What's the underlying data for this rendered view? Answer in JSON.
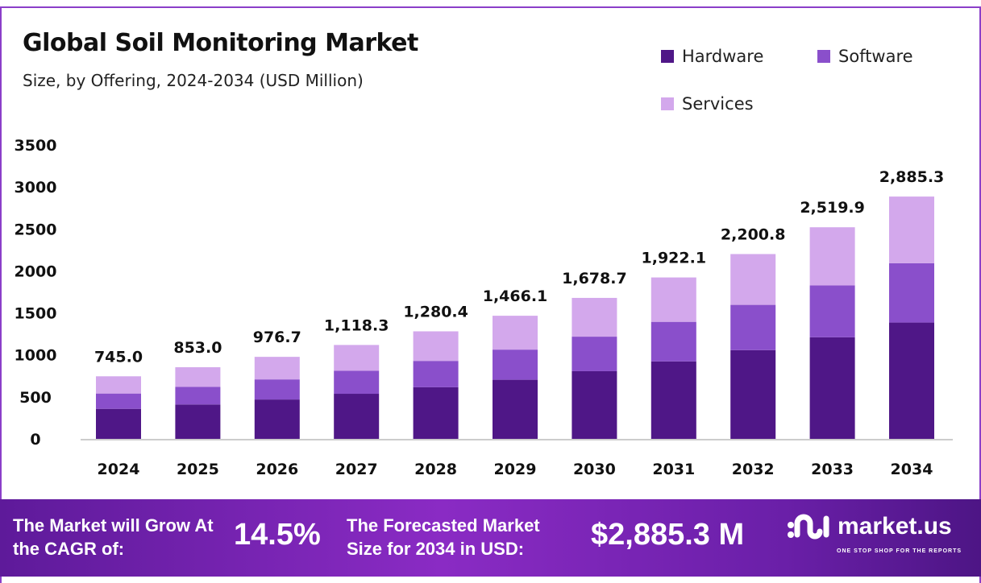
{
  "chart_data": {
    "type": "bar",
    "stacked": true,
    "title": "Global Soil Monitoring Market",
    "subtitle": "Size, by Offering, 2024-2034 (USD Million)",
    "categories": [
      "2024",
      "2025",
      "2026",
      "2027",
      "2028",
      "2029",
      "2030",
      "2031",
      "2032",
      "2033",
      "2034"
    ],
    "series": [
      {
        "name": "Hardware",
        "color": "#4f1787",
        "values": [
          357.6,
          409.4,
          468.8,
          536.8,
          614.6,
          703.7,
          805.8,
          922.6,
          1056.4,
          1209.6,
          1384.9
        ]
      },
      {
        "name": "Software",
        "color": "#8a4fcb",
        "values": [
          182.5,
          209.0,
          239.3,
          274.0,
          313.7,
          359.2,
          411.3,
          470.9,
          539.2,
          617.4,
          706.9
        ]
      },
      {
        "name": "Services",
        "color": "#d3a8ec",
        "values": [
          204.9,
          234.6,
          268.6,
          307.5,
          352.1,
          403.2,
          461.6,
          528.6,
          605.2,
          692.9,
          793.5
        ]
      }
    ],
    "totals": [
      745.0,
      853.0,
      976.7,
      1118.3,
      1280.4,
      1466.1,
      1678.7,
      1922.1,
      2200.8,
      2519.9,
      2885.3
    ],
    "total_labels": [
      "745.0",
      "853.0",
      "976.7",
      "1,118.3",
      "1,280.4",
      "1,466.1",
      "1,678.7",
      "1,922.1",
      "2,200.8",
      "2,519.9",
      "2,885.3"
    ],
    "yticks": [
      "0",
      "500",
      "1000",
      "1500",
      "2000",
      "2500",
      "3000",
      "3500"
    ],
    "ylim": [
      0,
      3500
    ],
    "xlabel": "",
    "ylabel": "",
    "grid": false,
    "legend": "top-right"
  },
  "footer": {
    "cagr_label": "The Market will Grow At the CAGR of:",
    "cagr_value": "14.5%",
    "forecast_label": "The Forecasted Market Size for 2034 in USD:",
    "forecast_value": "$2,885.3 M",
    "brand": "market.us",
    "tagline": "ONE STOP SHOP FOR THE REPORTS"
  }
}
